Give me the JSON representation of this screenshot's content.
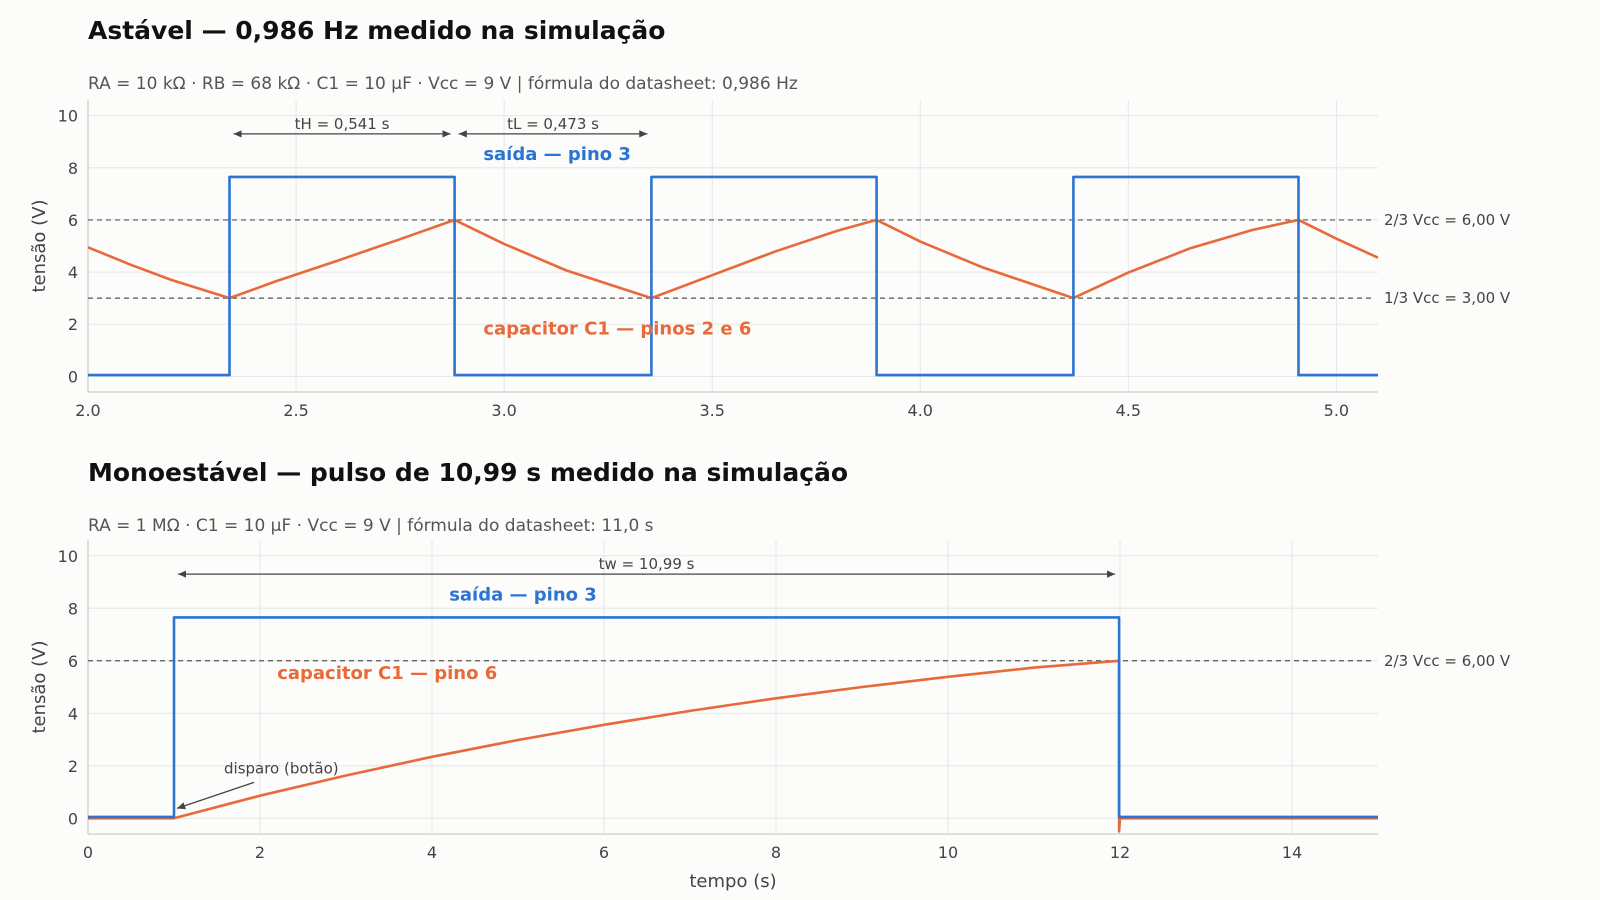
{
  "colors": {
    "output": "#2b74d2",
    "capacitor": "#e8693a",
    "grid": "#e6e6e6",
    "ref": "#555555",
    "axis": "#cccccc"
  },
  "chart_data": [
    {
      "type": "line",
      "title": "Astável — 0,986 Hz medido na simulação",
      "subtitle": "RA = 10 kΩ · RB = 68 kΩ · C1 = 10 µF · Vcc = 9 V   |   fórmula do datasheet: 0,986 Hz",
      "xlabel": "",
      "ylabel": "tensão (V)",
      "xlim": [
        2.0,
        5.1
      ],
      "ylim": [
        -0.6,
        10.6
      ],
      "xticks": [
        "2.0",
        "2.5",
        "3.0",
        "3.5",
        "4.0",
        "4.5",
        "5.0"
      ],
      "yticks": [
        "0",
        "2",
        "4",
        "6",
        "8",
        "10"
      ],
      "grid": true,
      "series": [
        {
          "name": "saída — pino 3",
          "role": "output",
          "x": [
            2.0,
            2.34,
            2.34,
            2.881,
            2.881,
            3.354,
            3.354,
            3.895,
            3.895,
            4.368,
            4.368,
            4.909,
            4.909,
            5.1
          ],
          "values": [
            0.05,
            0.05,
            7.65,
            7.65,
            0.05,
            0.05,
            7.65,
            7.65,
            0.05,
            0.05,
            7.65,
            7.65,
            0.05,
            0.05
          ]
        },
        {
          "name": "capacitor C1 — pinos 2 e 6",
          "role": "capacitor",
          "x": [
            2.0,
            2.1,
            2.2,
            2.34,
            2.45,
            2.6,
            2.75,
            2.881,
            3.0,
            3.15,
            3.354,
            3.5,
            3.65,
            3.8,
            3.895,
            4.0,
            4.15,
            4.368,
            4.5,
            4.65,
            4.8,
            4.909,
            5.0,
            5.1
          ],
          "values": [
            4.95,
            4.3,
            3.7,
            3.0,
            3.64,
            4.44,
            5.26,
            6.0,
            5.08,
            4.06,
            3.0,
            3.88,
            4.78,
            5.58,
            6.0,
            5.17,
            4.18,
            3.0,
            3.98,
            4.92,
            5.62,
            6.0,
            5.28,
            4.55
          ]
        }
      ],
      "reference_lines": [
        {
          "y": 6.0,
          "label": "2/3 Vcc = 6,00 V"
        },
        {
          "y": 3.0,
          "label": "1/3 Vcc = 3,00 V"
        }
      ],
      "annotations": [
        {
          "text": "tH = 0,541 s",
          "x_start": 2.34,
          "x_end": 2.881,
          "y": 9.3
        },
        {
          "text": "tL = 0,473 s",
          "x_start": 2.881,
          "x_end": 3.354,
          "y": 9.3
        }
      ]
    },
    {
      "type": "line",
      "title": "Monoestável — pulso de 10,99 s medido na simulação",
      "subtitle": "RA = 1 MΩ · C1 = 10 µF · Vcc = 9 V   |   fórmula do datasheet: 11,0 s",
      "xlabel": "tempo (s)",
      "ylabel": "tensão (V)",
      "xlim": [
        0,
        15
      ],
      "ylim": [
        -0.6,
        10.6
      ],
      "xticks": [
        "0",
        "2",
        "4",
        "6",
        "8",
        "10",
        "12",
        "14"
      ],
      "yticks": [
        "0",
        "2",
        "4",
        "6",
        "8",
        "10"
      ],
      "grid": true,
      "series": [
        {
          "name": "saída — pino 3",
          "role": "output",
          "x": [
            0,
            1.0,
            1.0,
            11.99,
            11.99,
            15
          ],
          "values": [
            0.05,
            0.05,
            7.65,
            7.65,
            0.05,
            0.05
          ]
        },
        {
          "name": "capacitor C1 — pino 6",
          "role": "capacitor",
          "x": [
            0,
            1.0,
            2,
            3,
            4,
            5,
            6,
            7,
            8,
            9,
            10,
            11,
            11.99,
            11.99,
            12.0,
            15
          ],
          "values": [
            0,
            0,
            0.86,
            1.63,
            2.34,
            2.98,
            3.56,
            4.09,
            4.57,
            5.0,
            5.39,
            5.74,
            6.0,
            -0.5,
            0,
            0
          ]
        }
      ],
      "reference_lines": [
        {
          "y": 6.0,
          "label": "2/3 Vcc = 6,00 V"
        }
      ],
      "annotations": [
        {
          "text": "tw = 10,99 s",
          "x_start": 1.0,
          "x_end": 11.99,
          "y": 9.3
        },
        {
          "text": "disparo (botão)",
          "x": 1.0,
          "y": 0.3
        }
      ]
    }
  ]
}
